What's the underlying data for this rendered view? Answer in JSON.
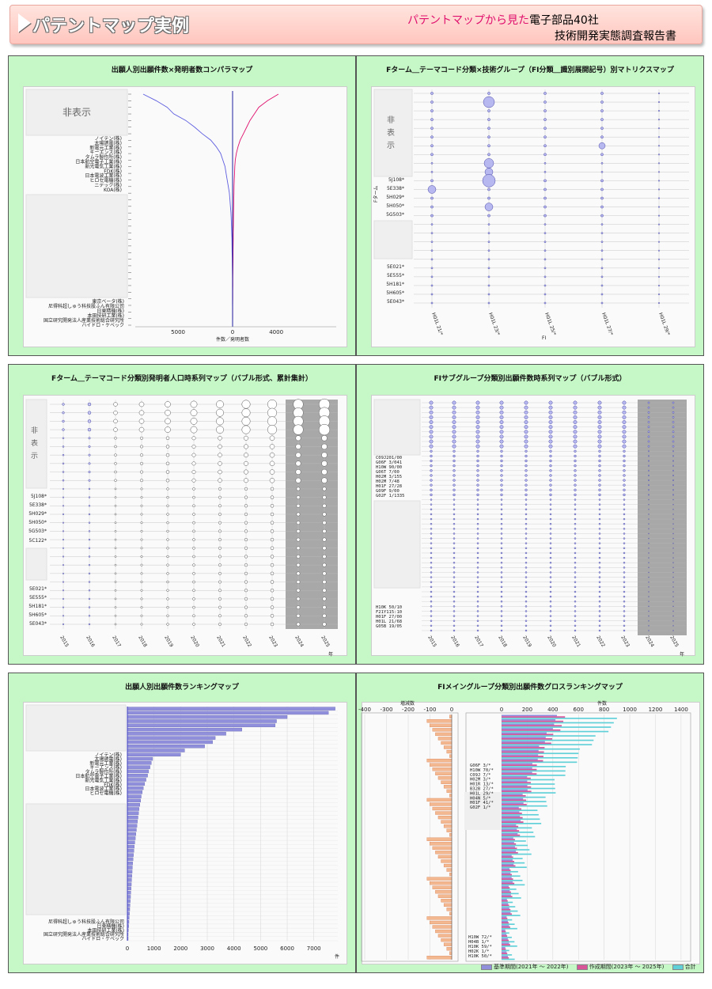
{
  "header": {
    "title": "パテントマップ実例",
    "subtitle_accent": "パテントマップから見た",
    "subtitle_main": "電子部品40社",
    "subtitle_line2": "技術開発実態調査報告書"
  },
  "panels": [
    {
      "id": "p1",
      "title": "出願人別出願件数×発明者数コンパラマップ"
    },
    {
      "id": "p2",
      "title": "Fターム＿テーマコード分類×技術グループ（FI分類＿識別展開記号）別マトリクスマップ"
    },
    {
      "id": "p3",
      "title": "Fターム＿テーマコード分類別発明者人口時系列マップ（バブル形式、累計集計）"
    },
    {
      "id": "p4",
      "title": "FIサブグループ分類別出願件数時系列マップ（バブル形式）"
    },
    {
      "id": "p5",
      "title": "出願人別出願件数ランキングマップ"
    },
    {
      "id": "p6",
      "title": "FIメイングループ分類別出願件数グロスランキングマップ"
    }
  ],
  "chart_data": [
    {
      "type": "line",
      "title": "出願人別出願件数×発明者数コンパラマップ",
      "xlabel": "件数／発明者数",
      "hidden_label": "非表示",
      "x_ticks": [
        "5000",
        "0",
        "4000"
      ],
      "y_labels_upper": [
        "ノイテン(株)",
        "太陽誘電(株)",
        "新電元工業(株)",
        "キーエンス(株)",
        "タムラ製作所(株)",
        "日本航空電子工業(株)",
        "新光電気工業(株)",
        "FDK(株)",
        "日本電波工業(株)",
        "ヒロセ電機(株)",
        "ニデック(株)",
        "KOA(株)"
      ],
      "y_labels_lower": [
        "東京ベータ(株)",
        "尼得科超しゅう科技股ふん有限公司",
        "日東精機(株)",
        "本田技研工業(株)",
        "国立研究開発法人産業技術総合研究所",
        "ハイドロ・ケベック"
      ],
      "series": [
        {
          "values": [
            -8200,
            -7000,
            -6000,
            -5400,
            -4300,
            -3500,
            -2800,
            -2000,
            -1500,
            -1100,
            -900,
            -700,
            -600,
            -500,
            -400,
            -300,
            -250,
            -200,
            -150,
            -120,
            -100,
            -80,
            -60,
            -50,
            -40,
            -30,
            -20,
            -15,
            -10,
            -8,
            -6,
            -5,
            -4,
            -3,
            -2,
            -1
          ]
        },
        {
          "values": [
            4200,
            3200,
            2400,
            2000,
            1600,
            1300,
            1000,
            700,
            500,
            350,
            250,
            200,
            180,
            150,
            130,
            120,
            110,
            100,
            90,
            80,
            70,
            60,
            55,
            50,
            45,
            40,
            35,
            30,
            25,
            20,
            15,
            12,
            10,
            8,
            5,
            3
          ]
        }
      ]
    },
    {
      "type": "scatter",
      "title": "Fターム＿テーマコード分類×技術グループ（FI分類＿識別展開記号）別マトリクスマップ",
      "xlabel": "FI",
      "ylabel": "Fターム",
      "hidden_label": "非表示",
      "x_labels": [
        "H01L 21/*",
        "H01L 23/*",
        "H01L 25/*",
        "H01L 27/*",
        "H01L 29/*"
      ],
      "y_labels": [
        "5J108*",
        "5E338*",
        "5H029*",
        "5H050*",
        "5G503*",
        "5E021*",
        "5E555*",
        "5H181*",
        "5H605*",
        "5E043*"
      ]
    },
    {
      "type": "scatter",
      "title": "Fターム＿テーマコード分類別発明者人口時系列マップ（バブル形式、累計集計）",
      "hidden_label": "非表示",
      "x_labels": [
        "2015",
        "2016",
        "2017",
        "2018",
        "2019",
        "2020",
        "2021",
        "2022",
        "2023",
        "2024",
        "2025"
      ],
      "x_unit": "年",
      "y_labels": [
        "5J108*",
        "5E338*",
        "5H029*",
        "5H050*",
        "5G503*",
        "5C122*",
        "5E021*",
        "5E555*",
        "5H181*",
        "5H605*",
        "5E043*"
      ]
    },
    {
      "type": "scatter",
      "title": "FIサブグループ分類別出願件数時系列マップ（バブル形式）",
      "x_labels": [
        "2015",
        "2016",
        "2017",
        "2018",
        "2019",
        "2020",
        "2021",
        "2022",
        "2023",
        "2024",
        "2025"
      ],
      "x_unit": "年",
      "y_labels": [
        "C09J201/00",
        "G06F 3/041",
        "H10W 90/00",
        "G06T 7/00",
        "H02M 3/155",
        "H02M 7/48",
        "H01F 27/28",
        "G09F 9/00",
        "G02F 1/1335",
        "H10K 50/10",
        "F21Y115:10",
        "H01F 27/00",
        "H01L 21/68",
        "G05B 19/05"
      ]
    },
    {
      "type": "bar",
      "title": "出願人別出願件数ランキングマップ",
      "x_ticks": [
        "0",
        "1000",
        "2000",
        "3000",
        "4000",
        "5000",
        "6000",
        "7000"
      ],
      "x_unit": "件",
      "xlim": [
        0,
        7900
      ],
      "y_labels_upper": [
        "ノイテン(株)",
        "太陽誘電(株)",
        "新電元工業(株)",
        "キーエンス(株)",
        "タムラ製作所(株)",
        "日本航空電子工業(株)",
        "新光電気工業(株)",
        "FDK(株)",
        "日本電波工業(株)",
        "ヒロセ電機(株)"
      ],
      "y_labels_lower": [
        "尼得科超しゅう科技股ふん有限公司",
        "日東精機(株)",
        "本田技研工業(株)",
        "国立研究開発法人産業技術総合研究所",
        "ハイドロ・ケベック"
      ],
      "values": [
        7800,
        7550,
        6000,
        5600,
        5550,
        4300,
        3700,
        3300,
        3200,
        2900,
        2150,
        2000,
        950,
        900,
        850,
        800,
        760,
        700,
        650,
        600,
        560,
        520,
        500,
        470,
        440,
        420,
        400,
        380,
        360,
        340,
        320,
        300,
        280,
        260,
        245,
        230,
        215,
        200,
        190,
        180,
        170,
        160,
        150,
        140,
        130,
        120,
        110,
        100,
        90,
        80,
        70,
        60,
        50,
        40,
        30,
        20
      ]
    },
    {
      "type": "bar",
      "title": "FIメイングループ分類別出願件数グロスランキングマップ",
      "left_xlabel": "増減数",
      "left_ticks": [
        "-400",
        "-300",
        "-200",
        "-100",
        "0"
      ],
      "right_xlabel": "件数",
      "right_ticks": [
        "0",
        "200",
        "400",
        "600",
        "800",
        "1000",
        "1200",
        "1400"
      ],
      "y_labels_a": [
        "G06F 3/*",
        "H10W 70/*",
        "C09J 7/*",
        "H02M 3/*",
        "H01R 13/*",
        "B32B 27/*",
        "H01L 29/*",
        "H04N 5/*",
        "H01F 41/*",
        "G02F 1/*"
      ],
      "y_labels_b": [
        "H10W 72/*",
        "H04B 1/*",
        "H10K 59/*",
        "H02K 1/*",
        "H10K 50/*"
      ],
      "legend": [
        "基準期間(2021年 ～ 2022年)",
        "作成期間(2023年 ～ 2025年)",
        "合計"
      ],
      "colors": [
        "#8f8fdc",
        "#d8559a",
        "#5fd0d8"
      ]
    }
  ]
}
